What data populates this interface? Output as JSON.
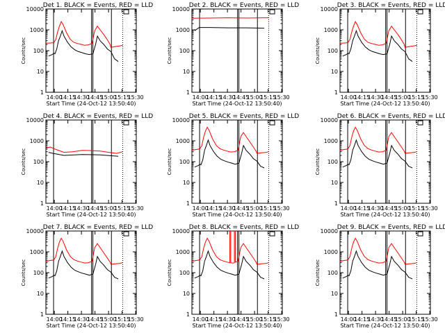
{
  "chart_data": {
    "common": {
      "title_suffix": ". BLACK = Events, RED = LLD",
      "xlabel": "Start Time (24-Oct-12 13:50:40)",
      "ylabel": "Counts/sec",
      "type": "line",
      "y_scale": "log",
      "ylim": [
        1,
        10000
      ],
      "xlim_min": [
        0,
        100
      ],
      "y_ticks": [
        1,
        10,
        100,
        1000,
        10000
      ],
      "y_tick_labels": [
        "1",
        "10",
        "100",
        "1000",
        "10000"
      ],
      "x_ticks_min": [
        9.33,
        24.33,
        39.33,
        54.33,
        69.33,
        84.33,
        99.33
      ],
      "x_tick_labels": [
        "14:00",
        "14:15",
        "14:30",
        "14:45",
        "15:00",
        "15:15",
        "15:30"
      ],
      "vlines_min": [
        8.5,
        50.5,
        52,
        72.5
      ],
      "dotted_lines_min": [
        85
      ]
    },
    "colors": {
      "events": "#000000",
      "lld": "#ff0000",
      "axes": "#000000",
      "background": "#ffffff"
    },
    "series_names": {
      "events": "Events",
      "lld": "LLD"
    },
    "panels": [
      {
        "title": "Det 1",
        "events": {
          "x": [
            3,
            5,
            6,
            7,
            8,
            9,
            10,
            12,
            14,
            16,
            18,
            20,
            24,
            28,
            32,
            36,
            40,
            44,
            48,
            52,
            55,
            57,
            60,
            64,
            68,
            72,
            76,
            78,
            80
          ],
          "y": [
            55,
            60,
            62,
            65,
            70,
            75,
            70,
            120,
            300,
            500,
            900,
            500,
            250,
            150,
            110,
            90,
            80,
            70,
            65,
            70,
            200,
            500,
            300,
            200,
            120,
            90,
            40,
            35,
            30
          ]
        },
        "lld": {
          "x": [
            0,
            4,
            8,
            9,
            11,
            13,
            15,
            17,
            19,
            23,
            27,
            31,
            35,
            39,
            43,
            47,
            51,
            54,
            57,
            60,
            64,
            68,
            71,
            72,
            74,
            78,
            82,
            85
          ],
          "y": [
            230,
            230,
            240,
            250,
            350,
            800,
            1500,
            2500,
            1800,
            700,
            350,
            250,
            220,
            200,
            180,
            190,
            220,
            900,
            1500,
            1000,
            600,
            330,
            200,
            140,
            150,
            160,
            170,
            180
          ]
        }
      },
      {
        "title": "Det 2",
        "events": {
          "x": [
            3,
            8,
            20,
            40,
            60,
            80
          ],
          "y": [
            900,
            1300,
            1300,
            1250,
            1250,
            1200
          ]
        },
        "lld": {
          "x": [
            0,
            20,
            40,
            60,
            80,
            85
          ],
          "y": [
            3600,
            3700,
            3800,
            3700,
            3800,
            3800
          ]
        }
      },
      {
        "title": "Det 3",
        "events": {
          "x": [
            3,
            5,
            6,
            7,
            8,
            9,
            10,
            12,
            14,
            16,
            18,
            20,
            24,
            28,
            32,
            36,
            40,
            44,
            48,
            52,
            55,
            57,
            60,
            64,
            68,
            72,
            76,
            78,
            80
          ],
          "y": [
            55,
            60,
            62,
            65,
            70,
            75,
            70,
            120,
            300,
            500,
            900,
            500,
            250,
            150,
            110,
            90,
            80,
            70,
            65,
            70,
            200,
            500,
            300,
            200,
            120,
            90,
            40,
            35,
            30
          ]
        },
        "lld": {
          "x": [
            0,
            4,
            8,
            9,
            11,
            13,
            15,
            17,
            19,
            23,
            27,
            31,
            35,
            39,
            43,
            47,
            51,
            54,
            57,
            60,
            64,
            68,
            71,
            72,
            74,
            78,
            82,
            85
          ],
          "y": [
            230,
            230,
            240,
            250,
            350,
            800,
            1500,
            2500,
            1800,
            700,
            350,
            250,
            220,
            200,
            180,
            190,
            220,
            900,
            1500,
            1000,
            600,
            330,
            200,
            140,
            150,
            160,
            170,
            180
          ]
        }
      },
      {
        "title": "Det 4",
        "events": {
          "x": [
            3,
            8,
            20,
            40,
            60,
            80
          ],
          "y": [
            280,
            250,
            200,
            220,
            210,
            180
          ]
        },
        "lld": {
          "x": [
            0,
            5,
            10,
            20,
            30,
            40,
            50,
            60,
            70,
            78,
            85
          ],
          "y": [
            450,
            500,
            400,
            280,
            300,
            350,
            340,
            320,
            280,
            250,
            300
          ]
        }
      },
      {
        "title": "Det 5",
        "events": {
          "x": [
            3,
            5,
            6,
            7,
            8,
            9,
            10,
            12,
            14,
            16,
            18,
            20,
            24,
            28,
            32,
            36,
            40,
            44,
            48,
            52,
            55,
            57,
            60,
            64,
            68,
            72,
            76,
            78,
            80
          ],
          "y": [
            55,
            60,
            62,
            65,
            70,
            75,
            70,
            120,
            350,
            600,
            1100,
            600,
            300,
            180,
            130,
            110,
            95,
            85,
            75,
            85,
            250,
            600,
            350,
            230,
            140,
            105,
            60,
            55,
            50
          ]
        },
        "lld": {
          "x": [
            0,
            4,
            8,
            9,
            11,
            13,
            15,
            17,
            19,
            23,
            27,
            31,
            35,
            39,
            43,
            47,
            51,
            54,
            57,
            60,
            64,
            68,
            71,
            72,
            74,
            78,
            82,
            85
          ],
          "y": [
            350,
            380,
            400,
            420,
            600,
            1500,
            3000,
            4500,
            3200,
            1200,
            600,
            420,
            360,
            320,
            290,
            300,
            350,
            1600,
            2500,
            1600,
            900,
            500,
            320,
            250,
            260,
            270,
            280,
            300
          ]
        }
      },
      {
        "title": "Det 6",
        "events": {
          "x": [
            3,
            5,
            6,
            7,
            8,
            9,
            10,
            12,
            14,
            16,
            18,
            20,
            24,
            28,
            32,
            36,
            40,
            44,
            48,
            52,
            55,
            57,
            60,
            64,
            68,
            72,
            76,
            78,
            80
          ],
          "y": [
            55,
            60,
            62,
            65,
            70,
            75,
            70,
            120,
            350,
            600,
            1100,
            600,
            300,
            180,
            130,
            110,
            95,
            85,
            75,
            85,
            250,
            600,
            350,
            230,
            140,
            105,
            60,
            55,
            50
          ]
        },
        "lld": {
          "x": [
            0,
            4,
            8,
            9,
            11,
            13,
            15,
            17,
            19,
            23,
            27,
            31,
            35,
            39,
            43,
            47,
            51,
            54,
            57,
            60,
            64,
            68,
            71,
            72,
            74,
            78,
            82,
            85
          ],
          "y": [
            350,
            380,
            400,
            420,
            600,
            1500,
            3000,
            4500,
            3200,
            1200,
            600,
            420,
            360,
            320,
            290,
            300,
            350,
            1600,
            2500,
            1600,
            900,
            500,
            320,
            250,
            260,
            270,
            280,
            300
          ]
        }
      },
      {
        "title": "Det 7",
        "events": {
          "x": [
            3,
            5,
            6,
            7,
            8,
            9,
            10,
            12,
            14,
            16,
            18,
            20,
            24,
            28,
            32,
            36,
            40,
            44,
            48,
            52,
            55,
            57,
            60,
            64,
            68,
            72,
            76,
            78,
            80
          ],
          "y": [
            55,
            60,
            62,
            65,
            70,
            75,
            70,
            120,
            350,
            600,
            1100,
            600,
            300,
            180,
            130,
            110,
            95,
            85,
            75,
            85,
            250,
            600,
            350,
            230,
            140,
            105,
            60,
            55,
            50
          ]
        },
        "lld": {
          "x": [
            0,
            4,
            8,
            9,
            11,
            13,
            15,
            17,
            19,
            23,
            27,
            31,
            35,
            39,
            43,
            47,
            51,
            54,
            57,
            60,
            64,
            68,
            71,
            72,
            74,
            78,
            82,
            85
          ],
          "y": [
            350,
            380,
            400,
            420,
            600,
            1500,
            3000,
            4500,
            3200,
            1200,
            600,
            420,
            360,
            320,
            290,
            300,
            350,
            1600,
            2500,
            1600,
            900,
            500,
            320,
            250,
            260,
            270,
            280,
            300
          ]
        }
      },
      {
        "title": "Det 8",
        "events": {
          "x": [
            3,
            5,
            6,
            7,
            8,
            9,
            10,
            12,
            14,
            16,
            18,
            20,
            24,
            28,
            32,
            36,
            40,
            44,
            48,
            52,
            55,
            57,
            60,
            64,
            68,
            72,
            76,
            78,
            80
          ],
          "y": [
            55,
            60,
            62,
            65,
            70,
            75,
            70,
            120,
            350,
            600,
            1100,
            600,
            300,
            180,
            130,
            110,
            95,
            85,
            75,
            85,
            250,
            600,
            350,
            230,
            140,
            105,
            60,
            55,
            50
          ]
        },
        "lld": {
          "x": [
            0,
            4,
            8,
            9,
            11,
            13,
            15,
            17,
            19,
            23,
            27,
            31,
            35,
            39,
            42,
            42,
            43,
            43,
            44,
            46,
            47,
            47,
            48,
            48,
            51,
            54,
            57,
            60,
            64,
            68,
            71,
            72,
            74,
            78,
            82,
            85
          ],
          "y": [
            350,
            380,
            400,
            420,
            600,
            1500,
            3000,
            4500,
            3200,
            1200,
            600,
            420,
            360,
            320,
            300,
            10000,
            10000,
            300,
            290,
            290,
            300,
            10000,
            10000,
            320,
            350,
            1600,
            2500,
            1600,
            900,
            500,
            320,
            250,
            260,
            270,
            280,
            300
          ]
        }
      },
      {
        "title": "Det 9",
        "events": {
          "x": [
            3,
            5,
            6,
            7,
            8,
            9,
            10,
            12,
            14,
            16,
            18,
            20,
            24,
            28,
            32,
            36,
            40,
            44,
            48,
            52,
            55,
            57,
            60,
            64,
            68,
            72,
            76,
            78,
            80
          ],
          "y": [
            55,
            60,
            62,
            65,
            70,
            75,
            70,
            120,
            350,
            600,
            1100,
            600,
            300,
            180,
            130,
            110,
            95,
            85,
            75,
            85,
            250,
            600,
            350,
            230,
            140,
            105,
            60,
            55,
            50
          ]
        },
        "lld": {
          "x": [
            0,
            4,
            8,
            9,
            11,
            13,
            15,
            17,
            19,
            23,
            27,
            31,
            35,
            39,
            43,
            47,
            51,
            54,
            57,
            60,
            64,
            68,
            71,
            72,
            74,
            78,
            82,
            85
          ],
          "y": [
            350,
            380,
            400,
            420,
            600,
            1500,
            3000,
            4500,
            3200,
            1200,
            600,
            420,
            360,
            320,
            290,
            300,
            350,
            1600,
            2500,
            1600,
            900,
            500,
            320,
            250,
            260,
            270,
            280,
            300
          ]
        }
      }
    ]
  }
}
